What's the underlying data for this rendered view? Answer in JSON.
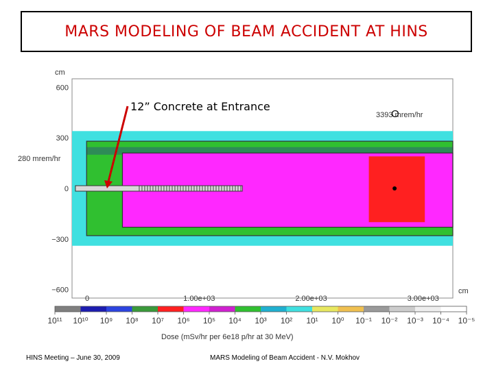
{
  "slide": {
    "title": "MARS MODELING OF BEAM ACCIDENT AT HINS",
    "footer_left": "HINS Meeting – June 30, 2009",
    "footer_center": "MARS Modeling of Beam Accident - N.V. Mokhov"
  },
  "chart_data": {
    "type": "heatmap",
    "title": "",
    "annotation_concrete": "12” Concrete at Entrance",
    "annotation_entrance_dose": "280 mrem/hr",
    "annotation_peak_dose": "3393 mrem/hr",
    "y_unit_label": "cm",
    "x_unit_label": "cm",
    "y_ticks": [
      "600",
      "300",
      "0",
      "−300",
      "−600"
    ],
    "y_tick_values": [
      600,
      300,
      0,
      -300,
      -600
    ],
    "x_ticks": [
      "0",
      "1.00e+03",
      "2.00e+03",
      "3.00e+03"
    ],
    "x_tick_values": [
      0,
      1000,
      2000,
      3000
    ],
    "xlim": [
      0,
      3400
    ],
    "ylim": [
      -650,
      650
    ],
    "colorbar_label": "Dose (mSv/hr per 6e18 p/hr at 30 MeV)",
    "colorbar_tick_labels": [
      "10¹¹",
      "10¹⁰",
      "10⁹",
      "10⁸",
      "10⁷",
      "10⁶",
      "10⁵",
      "10⁴",
      "10³",
      "10²",
      "10¹",
      "10⁰",
      "10⁻¹",
      "10⁻²",
      "10⁻³",
      "10⁻⁴",
      "10⁻⁵"
    ],
    "colorbar_colors": [
      "#7f7f7f",
      "#1c1cb0",
      "#2c44e0",
      "#3a9a3a",
      "#ff2020",
      "#ff28ff",
      "#d020d0",
      "#30c030",
      "#20b0d0",
      "#40e0e0",
      "#e8e860",
      "#f0c050",
      "#9a9a9a",
      "#cccccc",
      "#eeeeee",
      "#ffffff"
    ],
    "regions": [
      {
        "name": "outer-room",
        "x": [
          0,
          3400
        ],
        "y": [
          -340,
          340
        ],
        "color": "#40e0e0"
      },
      {
        "name": "low-dose-band",
        "x": [
          130,
          3400
        ],
        "y": [
          -280,
          280
        ],
        "color": "#30c030"
      },
      {
        "name": "wall-band",
        "x": [
          130,
          3400
        ],
        "y": [
          200,
          245
        ],
        "color": "#2e8b57"
      },
      {
        "name": "beam-room",
        "x": [
          450,
          3400
        ],
        "y": [
          -230,
          210
        ],
        "color": "#ff28ff"
      },
      {
        "name": "high-dose",
        "x": [
          2650,
          3150
        ],
        "y": [
          -200,
          190
        ],
        "color": "#ff2020"
      }
    ],
    "beam_line_x": [
      30,
      1520
    ],
    "peak_dose_point_x": 2880
  }
}
